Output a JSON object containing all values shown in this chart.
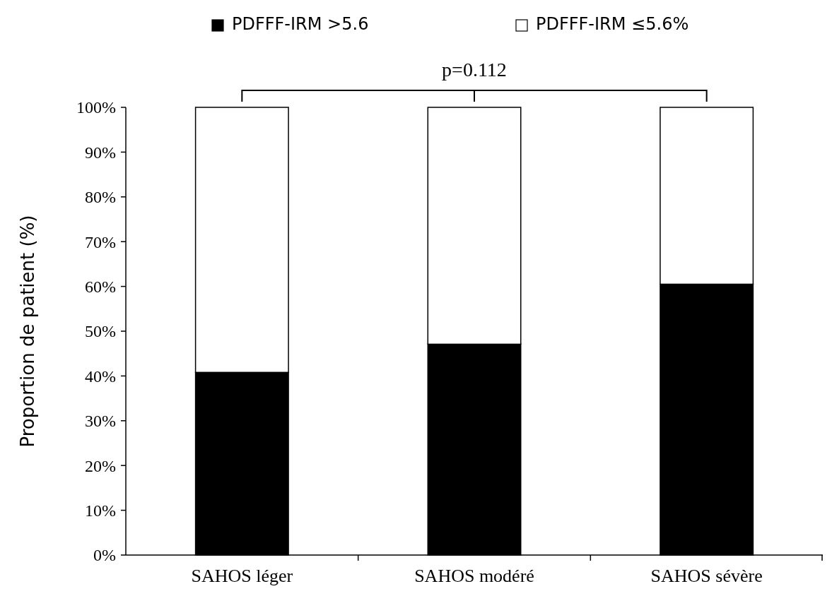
{
  "chart_data": {
    "type": "bar",
    "stacked": true,
    "ylabel": "Proportion de patient (%)",
    "categories": [
      "SAHOS léger",
      "SAHOS modéré",
      "SAHOS sévère"
    ],
    "series": [
      {
        "name": "PDFFF-IRM >5.6",
        "color": "#000000",
        "values": [
          40.8,
          47.1,
          60.5
        ]
      },
      {
        "name": "PDFFF-IRM ≤5.6%",
        "color": "#ffffff",
        "values": [
          59.2,
          52.9,
          39.5
        ]
      }
    ],
    "ylim": [
      0,
      100
    ],
    "yticks": [
      {
        "value": 0,
        "label": "0%"
      },
      {
        "value": 10,
        "label": "10%"
      },
      {
        "value": 20,
        "label": "20%"
      },
      {
        "value": 30,
        "label": "30%"
      },
      {
        "value": 40,
        "label": "40%"
      },
      {
        "value": 50,
        "label": "50%"
      },
      {
        "value": 60,
        "label": "60%"
      },
      {
        "value": 70,
        "label": "70%"
      },
      {
        "value": 80,
        "label": "80%"
      },
      {
        "value": 90,
        "label": "90%"
      },
      {
        "value": 100,
        "label": "100%"
      }
    ],
    "annotations": [
      "p=0.112"
    ],
    "legend": "top",
    "grid": false
  }
}
